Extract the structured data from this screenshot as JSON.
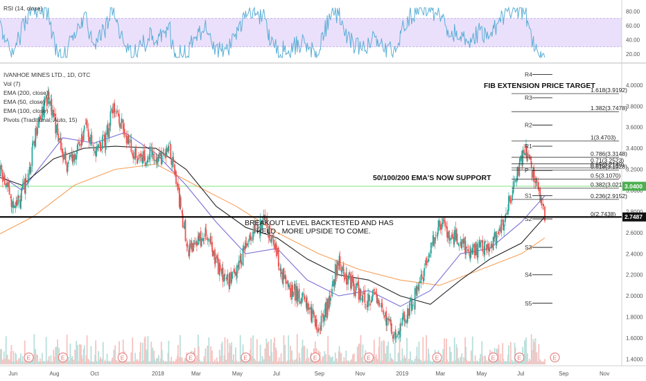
{
  "chart_data": [
    {
      "type": "line",
      "title": "RSI (14, close)",
      "ylim": [
        10,
        90
      ],
      "yticks": [
        "80.00",
        "60.00",
        "40.00",
        "20.00"
      ],
      "band": [
        30,
        70
      ],
      "colors": {
        "line": "#5aaed6",
        "band": "#ebe0fb",
        "band_border": "#b9a6e8"
      }
    },
    {
      "type": "candlestick",
      "title": "IVANHOE MINES LTD., 1D, OTC",
      "legend": [
        "Vol (7)",
        "EMA (200, close)",
        "EMA (50, close)",
        "EMA (100, close)",
        "Pivots (Traditional, Auto, 15)"
      ],
      "ylim": [
        1.35,
        4.15
      ],
      "yticks": [
        "4.0000",
        "3.8000",
        "3.6000",
        "3.4000",
        "3.2000",
        "3.0000",
        "2.8000",
        "2.6000",
        "2.4000",
        "2.2000",
        "2.0000",
        "1.8000",
        "1.6000",
        "1.4000"
      ],
      "xticks": [
        "Jun",
        "Aug",
        "Oct",
        "2018",
        "Mar",
        "May",
        "Jul",
        "Sep",
        "Nov",
        "2019",
        "Mar",
        "May",
        "Jul",
        "Sep",
        "Nov"
      ],
      "price_badges": [
        {
          "value": 3.04,
          "label": "3.0400",
          "color": "#4caf50"
        },
        {
          "value": 2.7487,
          "label": "2.7487",
          "color": "#111111"
        }
      ],
      "support_level": 2.7487,
      "ema_line_level": 3.04,
      "close_series": [
        [
          "2017-05-01",
          3.3
        ],
        [
          "2017-05-15",
          3.18
        ],
        [
          "2017-05-29",
          2.92
        ],
        [
          "2017-06-12",
          2.9
        ],
        [
          "2017-06-26",
          3.2
        ],
        [
          "2017-07-10",
          3.7
        ],
        [
          "2017-07-24",
          3.88
        ],
        [
          "2017-08-07",
          3.55
        ],
        [
          "2017-08-21",
          3.25
        ],
        [
          "2017-09-04",
          3.35
        ],
        [
          "2017-09-18",
          3.6
        ],
        [
          "2017-10-02",
          3.4
        ],
        [
          "2017-10-16",
          3.45
        ],
        [
          "2017-10-30",
          3.78
        ],
        [
          "2017-11-13",
          3.62
        ],
        [
          "2017-11-27",
          3.35
        ],
        [
          "2017-12-11",
          3.28
        ],
        [
          "2017-12-25",
          3.35
        ],
        [
          "2018-01-08",
          3.3
        ],
        [
          "2018-01-22",
          3.4
        ],
        [
          "2018-02-05",
          2.9
        ],
        [
          "2018-02-19",
          2.45
        ],
        [
          "2018-03-05",
          2.5
        ],
        [
          "2018-03-19",
          2.6
        ],
        [
          "2018-04-02",
          2.3
        ],
        [
          "2018-04-16",
          2.15
        ],
        [
          "2018-04-30",
          2.2
        ],
        [
          "2018-05-14",
          2.45
        ],
        [
          "2018-05-28",
          2.6
        ],
        [
          "2018-06-11",
          2.7
        ],
        [
          "2018-06-25",
          2.55
        ],
        [
          "2018-07-09",
          2.2
        ],
        [
          "2018-07-23",
          2.05
        ],
        [
          "2018-08-06",
          2.0
        ],
        [
          "2018-08-20",
          1.85
        ],
        [
          "2018-09-03",
          1.7
        ],
        [
          "2018-09-17",
          1.95
        ],
        [
          "2018-10-01",
          2.35
        ],
        [
          "2018-10-15",
          2.15
        ],
        [
          "2018-10-29",
          2.05
        ],
        [
          "2018-11-12",
          1.95
        ],
        [
          "2018-11-26",
          2.0
        ],
        [
          "2018-12-10",
          1.8
        ],
        [
          "2018-12-24",
          1.6
        ],
        [
          "2019-01-07",
          1.8
        ],
        [
          "2019-01-21",
          1.95
        ],
        [
          "2019-02-04",
          2.2
        ],
        [
          "2019-02-18",
          2.5
        ],
        [
          "2019-03-04",
          2.7
        ],
        [
          "2019-03-18",
          2.58
        ],
        [
          "2019-04-01",
          2.52
        ],
        [
          "2019-04-15",
          2.4
        ],
        [
          "2019-04-29",
          2.45
        ],
        [
          "2019-05-13",
          2.5
        ],
        [
          "2019-05-27",
          2.55
        ],
        [
          "2019-06-10",
          2.8
        ],
        [
          "2019-06-24",
          3.15
        ],
        [
          "2019-07-08",
          3.38
        ],
        [
          "2019-07-22",
          3.1
        ],
        [
          "2019-08-05",
          2.75
        ]
      ],
      "ema50": [
        [
          "2017-05-01",
          3.2
        ],
        [
          "2017-06-15",
          3.0
        ],
        [
          "2017-07-15",
          3.25
        ],
        [
          "2017-08-15",
          3.5
        ],
        [
          "2017-10-01",
          3.45
        ],
        [
          "2017-11-15",
          3.55
        ],
        [
          "2018-01-01",
          3.35
        ],
        [
          "2018-02-15",
          3.05
        ],
        [
          "2018-04-01",
          2.7
        ],
        [
          "2018-05-15",
          2.4
        ],
        [
          "2018-07-01",
          2.45
        ],
        [
          "2018-08-15",
          2.15
        ],
        [
          "2018-10-01",
          2.0
        ],
        [
          "2018-11-15",
          2.05
        ],
        [
          "2019-01-01",
          1.9
        ],
        [
          "2019-02-15",
          2.05
        ],
        [
          "2019-04-01",
          2.4
        ],
        [
          "2019-05-15",
          2.45
        ],
        [
          "2019-07-01",
          2.7
        ],
        [
          "2019-08-05",
          2.95
        ]
      ],
      "ema100": [
        [
          "2017-05-01",
          3.15
        ],
        [
          "2017-06-15",
          3.05
        ],
        [
          "2017-08-01",
          3.3
        ],
        [
          "2017-09-15",
          3.4
        ],
        [
          "2017-11-01",
          3.42
        ],
        [
          "2018-01-01",
          3.4
        ],
        [
          "2018-02-15",
          3.2
        ],
        [
          "2018-04-01",
          2.85
        ],
        [
          "2018-05-15",
          2.65
        ],
        [
          "2018-07-01",
          2.55
        ],
        [
          "2018-08-15",
          2.35
        ],
        [
          "2018-10-01",
          2.2
        ],
        [
          "2018-11-15",
          2.15
        ],
        [
          "2019-01-01",
          2.0
        ],
        [
          "2019-02-15",
          1.92
        ],
        [
          "2019-04-01",
          2.15
        ],
        [
          "2019-05-15",
          2.35
        ],
        [
          "2019-07-01",
          2.5
        ],
        [
          "2019-08-05",
          2.75
        ]
      ],
      "ema200": [
        [
          "2017-05-01",
          2.55
        ],
        [
          "2017-07-01",
          2.75
        ],
        [
          "2017-09-01",
          3.05
        ],
        [
          "2017-11-01",
          3.2
        ],
        [
          "2018-01-01",
          3.25
        ],
        [
          "2018-03-01",
          3.05
        ],
        [
          "2018-05-01",
          2.85
        ],
        [
          "2018-07-01",
          2.6
        ],
        [
          "2018-09-01",
          2.4
        ],
        [
          "2018-11-01",
          2.25
        ],
        [
          "2019-01-01",
          2.15
        ],
        [
          "2019-03-01",
          2.1
        ],
        [
          "2019-05-01",
          2.25
        ],
        [
          "2019-07-01",
          2.4
        ],
        [
          "2019-08-05",
          2.55
        ]
      ],
      "fib_levels": [
        {
          "label": "1.618(3.9192)",
          "value": 3.9192
        },
        {
          "label": "1.382(3.7478)",
          "value": 3.7478
        },
        {
          "label": "1(3.4703)",
          "value": 3.4703
        },
        {
          "label": "0.786(3.3148)",
          "value": 3.3148
        },
        {
          "label": "0.71(3.2523)",
          "value": 3.2523
        },
        {
          "label": "0.65(3.2149)",
          "value": 3.2149
        },
        {
          "label": "0.618(3.1928)",
          "value": 3.1928
        },
        {
          "label": "0.5(3.1070)",
          "value": 3.107
        },
        {
          "label": "0.382(3.0213)",
          "value": 3.0213
        },
        {
          "label": "0.236(2.9152)",
          "value": 2.9152
        },
        {
          "label": "0(2.7438)",
          "value": 2.7438
        }
      ],
      "pivots": [
        {
          "label": "R4",
          "value": 4.1
        },
        {
          "label": "R3",
          "value": 3.88
        },
        {
          "label": "R2",
          "value": 3.62
        },
        {
          "label": "R1",
          "value": 3.42
        },
        {
          "label": "P",
          "value": 3.19
        },
        {
          "label": "S1",
          "value": 2.95
        },
        {
          "label": "S2",
          "value": 2.73
        },
        {
          "label": "S3",
          "value": 2.46
        },
        {
          "label": "S4",
          "value": 2.2
        },
        {
          "label": "S5",
          "value": 1.93
        }
      ],
      "annotations": {
        "fib_target": "FIB EXTENSION PRICE TARGET",
        "ema_support": "50/100/200 EMA'S NOW SUPPORT",
        "breakout_line1": "BREAKOUT LEVEL BACKTESTED AND HAS",
        "breakout_line2": "HELD , MORE UPSIDE TO COME."
      },
      "earnings_marker": "E",
      "colors": {
        "up": "#26a69a",
        "down": "#ef5350",
        "ema50": "#7b6fd6",
        "ema100": "#222222",
        "ema200": "#f5a05a",
        "ema_line": "#7be07b"
      }
    }
  ]
}
